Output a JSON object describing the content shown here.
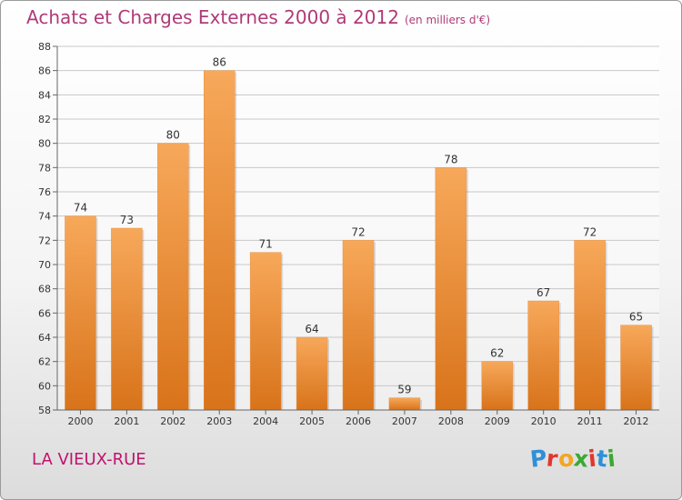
{
  "header": {
    "title": "Achats et Charges Externes 2000 à 2012",
    "subtitle": "(en milliers d'€)"
  },
  "commune": "LA VIEUX-RUE",
  "logo": {
    "letters": [
      "P",
      "r",
      "o",
      "x",
      "i",
      "t",
      "i"
    ],
    "colors": [
      "#2f8fd8",
      "#e0372f",
      "#f4a522",
      "#3aa935",
      "#e0372f",
      "#2f8fd8",
      "#3aa935"
    ]
  },
  "colors": {
    "bar_top": "#f7a85a",
    "bar_bottom": "#d8731a",
    "title": "#b03a78"
  },
  "chart_data": {
    "type": "bar",
    "title": "Achats et Charges Externes 2000 à 2012",
    "subtitle": "(en milliers d'€)",
    "categories": [
      "2000",
      "2001",
      "2002",
      "2003",
      "2004",
      "2005",
      "2006",
      "2007",
      "2008",
      "2009",
      "2010",
      "2011",
      "2012"
    ],
    "values": [
      74,
      73,
      80,
      86,
      71,
      64,
      72,
      59,
      78,
      62,
      67,
      72,
      65
    ],
    "ylim": [
      58,
      88
    ],
    "yticks": [
      58,
      60,
      62,
      64,
      66,
      68,
      70,
      72,
      74,
      76,
      78,
      80,
      82,
      84,
      86,
      88
    ],
    "grid": true,
    "legend": "none"
  }
}
